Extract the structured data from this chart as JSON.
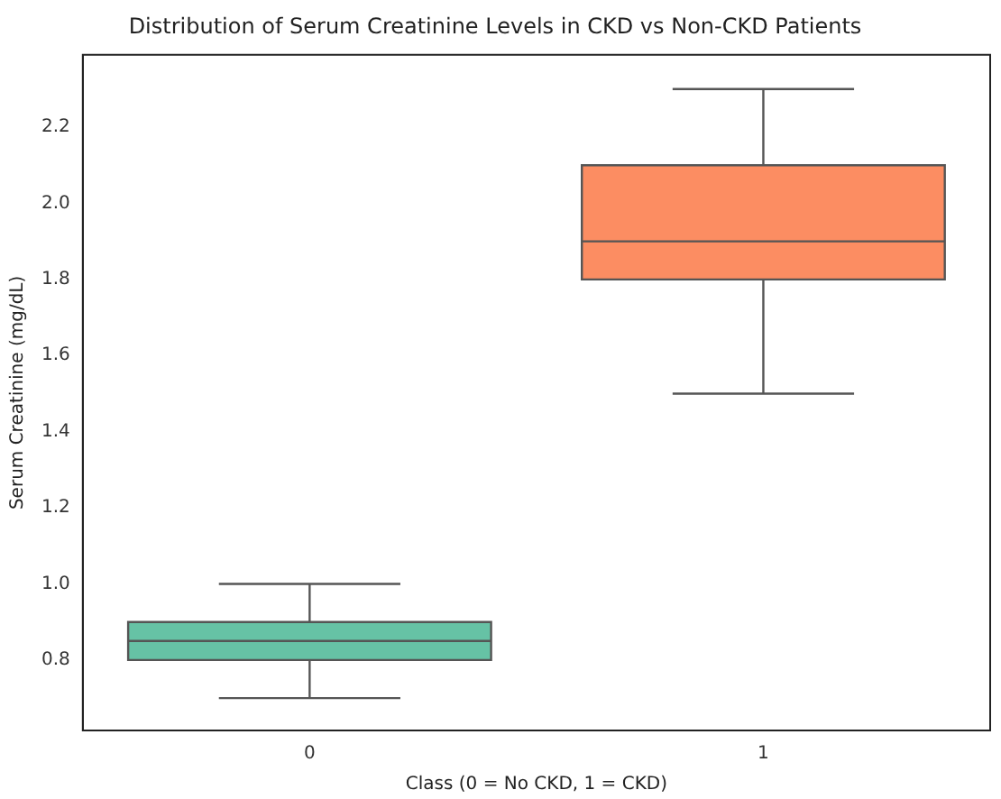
{
  "chart_data": {
    "type": "box",
    "title": "Distribution of Serum Creatinine Levels in CKD vs Non-CKD Patients",
    "xlabel": "Class (0 = No CKD, 1 = CKD)",
    "ylabel": "Serum Creatinine (mg/dL)",
    "categories": [
      "0",
      "1"
    ],
    "boxes": [
      {
        "low": 0.7,
        "q1": 0.8,
        "median": 0.85,
        "q3": 0.9,
        "high": 1.0
      },
      {
        "low": 1.5,
        "q1": 1.8,
        "median": 1.9,
        "q3": 2.1,
        "high": 2.3
      }
    ],
    "colors": [
      "#66c2a5",
      "#fc8d62"
    ],
    "ylim": [
      0.615,
      2.39
    ],
    "yticks": [
      0.8,
      {
        "value": 1,
        "label": "1.0"
      },
      1.2,
      1.4,
      1.6,
      1.8,
      {
        "value": 2,
        "label": "2.0"
      },
      2.2
    ]
  }
}
